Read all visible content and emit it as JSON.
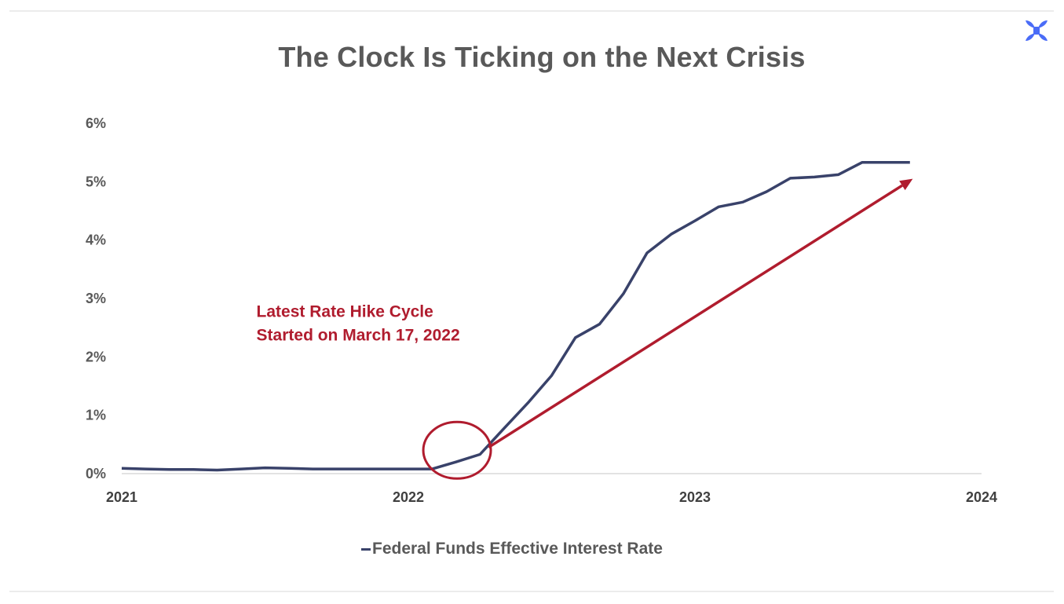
{
  "colors": {
    "series": "#39426a",
    "annotation": "#b01c2e",
    "text": "#595959",
    "logo": "#4a6cf7"
  },
  "logo": {
    "icon": "x-logo-icon"
  },
  "chart_data": {
    "type": "line",
    "title": "The Clock Is Ticking on the Next Crisis",
    "xlabel": "",
    "ylabel": "",
    "x_ticks": [
      "2021",
      "2022",
      "2023",
      "2024"
    ],
    "y_ticks": [
      "0%",
      "1%",
      "2%",
      "3%",
      "4%",
      "5%",
      "6%"
    ],
    "xlim": [
      2021.0,
      2024.0
    ],
    "ylim": [
      0,
      6
    ],
    "grid": false,
    "legend": {
      "position": "bottom"
    },
    "series": [
      {
        "name": "Federal Funds Effective Interest Rate",
        "x": [
          2021.0,
          2021.083,
          2021.167,
          2021.25,
          2021.333,
          2021.417,
          2021.5,
          2021.583,
          2021.667,
          2021.75,
          2021.833,
          2021.917,
          2022.0,
          2022.083,
          2022.167,
          2022.25,
          2022.333,
          2022.417,
          2022.5,
          2022.583,
          2022.667,
          2022.75,
          2022.833,
          2022.917,
          2023.0,
          2023.083,
          2023.167,
          2023.25,
          2023.333,
          2023.417,
          2023.5,
          2023.583,
          2023.667,
          2023.75
        ],
        "values": [
          0.09,
          0.08,
          0.07,
          0.07,
          0.06,
          0.08,
          0.1,
          0.09,
          0.08,
          0.08,
          0.08,
          0.08,
          0.08,
          0.08,
          0.2,
          0.33,
          0.77,
          1.21,
          1.68,
          2.33,
          2.56,
          3.08,
          3.78,
          4.1,
          4.33,
          4.57,
          4.65,
          4.83,
          5.06,
          5.08,
          5.12,
          5.33,
          5.33,
          5.33
        ]
      }
    ],
    "annotations": [
      {
        "lines": [
          "Latest Rate Hike Cycle",
          "Started on March 17, 2022"
        ],
        "at": {
          "x": 2021.47,
          "y": 2.6
        }
      }
    ],
    "highlight": {
      "shape": "circle",
      "at": {
        "x": 2022.17,
        "y": 0.4
      }
    },
    "arrow": {
      "from": {
        "x": 2022.28,
        "y": 0.45
      },
      "to": {
        "x": 2023.76,
        "y": 5.05
      }
    }
  }
}
